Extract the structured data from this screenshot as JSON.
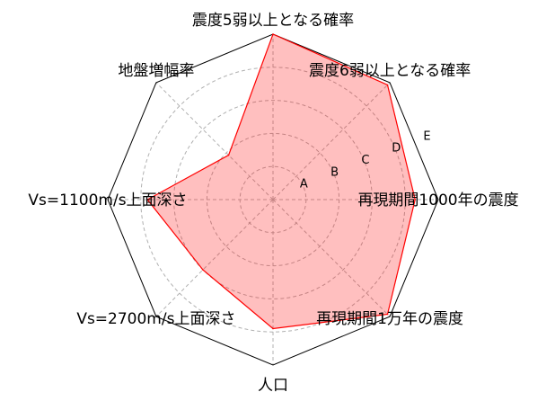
{
  "chart_data": {
    "type": "radar",
    "axes": [
      "震度5弱以上となる確率",
      "震度6弱以上となる確率",
      "再現期間1000年の震度",
      "再現期間1万年の震度",
      "人口",
      "Vs=2700m/s上面深さ",
      "Vs=1100m/s上面深さ",
      "地盤増幅率"
    ],
    "rings": [
      "A",
      "B",
      "C",
      "D",
      "E"
    ],
    "range": [
      0,
      5
    ],
    "values": [
      5.0,
      4.9,
      4.3,
      4.9,
      3.9,
      3.0,
      3.8,
      1.9
    ],
    "grid": true,
    "colors": {
      "fill": "#ff0000",
      "fill_opacity": 0.25,
      "line": "#ff0000",
      "outline": "#000000",
      "grid": "#b0b0b0"
    }
  }
}
